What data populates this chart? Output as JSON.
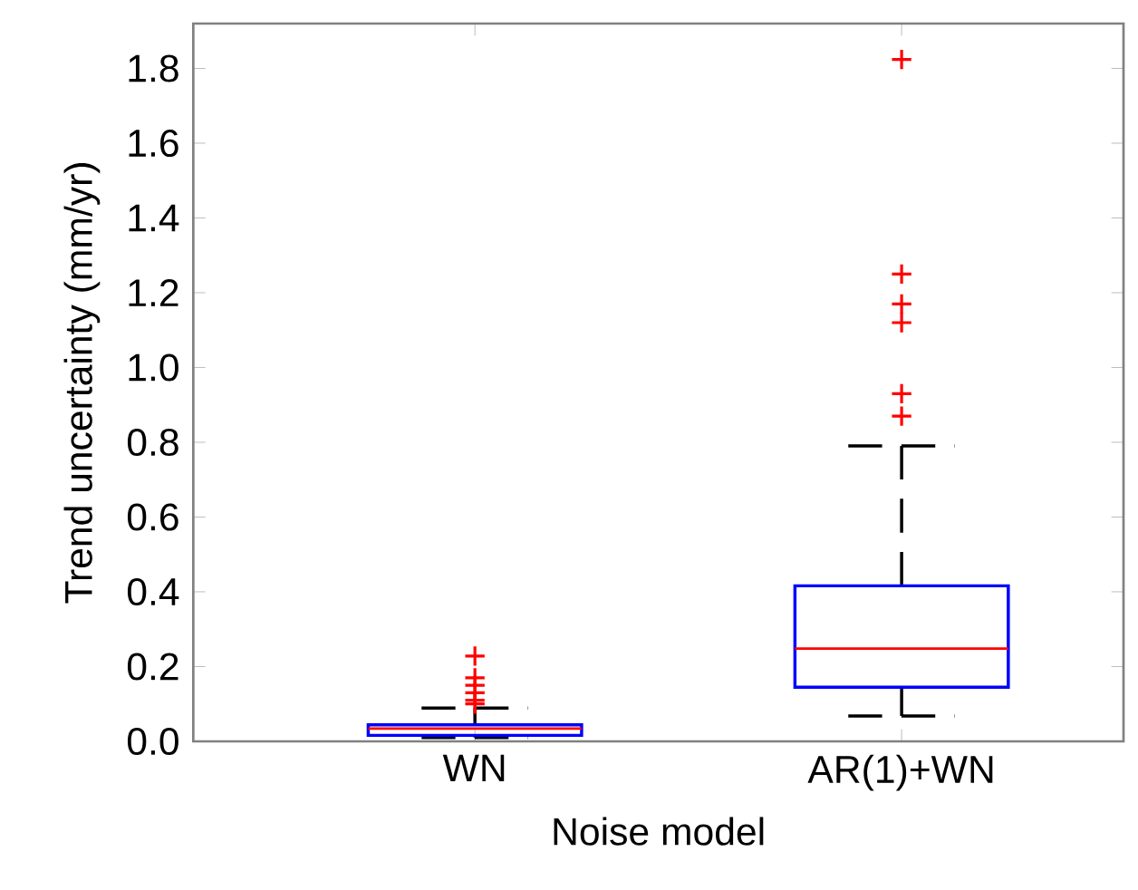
{
  "chart_data": {
    "type": "box",
    "xlabel": "Noise model",
    "ylabel": "Trend uncertainty (mm/yr)",
    "categories": [
      "WN",
      "AR(1)+WN"
    ],
    "ylim": [
      0,
      1.92
    ],
    "yticks": [
      {
        "value": 0,
        "label": "0.0"
      },
      {
        "value": 0.2,
        "label": "0.2"
      },
      {
        "value": 0.4,
        "label": "0.4"
      },
      {
        "value": 0.6,
        "label": "0.6"
      },
      {
        "value": 0.8,
        "label": "0.8"
      },
      {
        "value": 1.0,
        "label": "1.0"
      },
      {
        "value": 1.2,
        "label": "1.2"
      },
      {
        "value": 1.4,
        "label": "1.4"
      },
      {
        "value": 1.6,
        "label": "1.6"
      },
      {
        "value": 1.8,
        "label": "1.8"
      }
    ],
    "series": [
      {
        "color": "#0000ff",
        "boxes": [
          {
            "low": 0.01,
            "q1": 0.016,
            "median": 0.034,
            "q3": 0.044,
            "high": 0.089,
            "outliers": [
              0.228,
              0.17,
              0.15,
              0.13,
              0.11,
              0.1
            ]
          },
          {
            "low": 0.068,
            "q1": 0.145,
            "median": 0.248,
            "q3": 0.416,
            "high": 0.79,
            "outliers": [
              1.824,
              1.25,
              1.17,
              1.12,
              0.93,
              0.87
            ]
          }
        ]
      }
    ],
    "marker": "cross"
  }
}
